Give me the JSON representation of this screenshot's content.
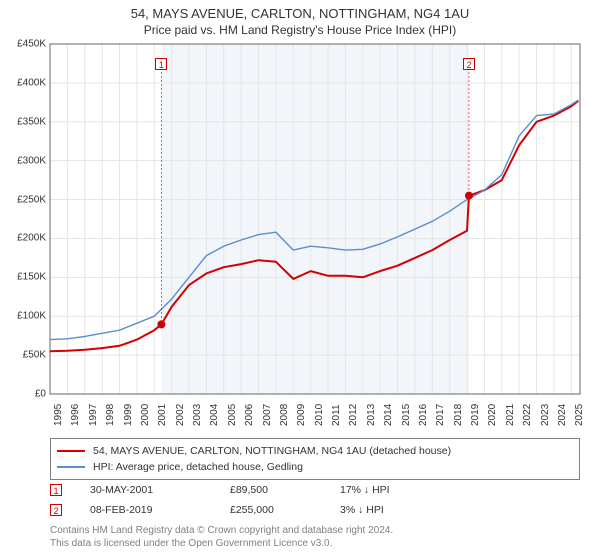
{
  "title": "54, MAYS AVENUE, CARLTON, NOTTINGHAM, NG4 1AU",
  "subtitle": "Price paid vs. HM Land Registry's House Price Index (HPI)",
  "chart": {
    "type": "line",
    "background_color": "#ffffff",
    "shaded_band_color": "#f2f5f9",
    "shaded_band_start": 2001.41,
    "shaded_band_end": 2019.11,
    "grid_color": "#e5e5e5",
    "axis_color": "#666666",
    "label_color": "#333333",
    "label_fontsize": 10,
    "ylim": [
      0,
      450000
    ],
    "ytick_step": 50000,
    "ytick_labels": [
      "£0",
      "£50K",
      "£100K",
      "£150K",
      "£200K",
      "£250K",
      "£300K",
      "£350K",
      "£400K",
      "£450K"
    ],
    "xlim": [
      1995,
      2025.5
    ],
    "xtick_step": 1,
    "xtick_labels": [
      "1995",
      "1996",
      "1997",
      "1998",
      "1999",
      "2000",
      "2001",
      "2002",
      "2003",
      "2004",
      "2005",
      "2006",
      "2007",
      "2008",
      "2009",
      "2010",
      "2011",
      "2012",
      "2013",
      "2014",
      "2015",
      "2016",
      "2017",
      "2018",
      "2019",
      "2020",
      "2021",
      "2022",
      "2023",
      "2024",
      "2025"
    ],
    "series": [
      {
        "name": "54, MAYS AVENUE, CARLTON, NOTTINGHAM, NG4 1AU (detached house)",
        "color": "#d40000",
        "line_width": 2,
        "x": [
          1995,
          1996,
          1997,
          1998,
          1999,
          2000,
          2001,
          2001.41,
          2002,
          2003,
          2004,
          2005,
          2006,
          2007,
          2008,
          2009,
          2010,
          2011,
          2012,
          2013,
          2014,
          2015,
          2016,
          2017,
          2018,
          2019,
          2019.11,
          2020,
          2021,
          2022,
          2023,
          2024,
          2025,
          2025.4
        ],
        "y": [
          55000,
          55500,
          57000,
          59000,
          62000,
          70000,
          82000,
          89500,
          112000,
          140000,
          155000,
          163000,
          167000,
          172000,
          170000,
          148000,
          158000,
          152000,
          152000,
          150000,
          158000,
          165000,
          175000,
          185000,
          198000,
          210000,
          255000,
          262000,
          275000,
          320000,
          350000,
          358000,
          370000,
          377000
        ]
      },
      {
        "name": "HPI: Average price, detached house, Gedling",
        "color": "#5b8ecb",
        "line_width": 1.4,
        "x": [
          1995,
          1996,
          1997,
          1998,
          1999,
          2000,
          2001,
          2002,
          2003,
          2004,
          2005,
          2006,
          2007,
          2008,
          2009,
          2010,
          2011,
          2012,
          2013,
          2014,
          2015,
          2016,
          2017,
          2018,
          2019,
          2020,
          2021,
          2022,
          2023,
          2024,
          2025,
          2025.4
        ],
        "y": [
          70000,
          71000,
          74000,
          78000,
          82000,
          91000,
          100000,
          122000,
          150000,
          178000,
          190000,
          198000,
          205000,
          208000,
          185000,
          190000,
          188000,
          185000,
          186000,
          193000,
          202000,
          212000,
          222000,
          235000,
          250000,
          262000,
          282000,
          332000,
          358000,
          360000,
          372000,
          378000
        ]
      }
    ],
    "sale_points": [
      {
        "label": "1",
        "x": 2001.41,
        "y": 89500,
        "box_color": "#d40000"
      },
      {
        "label": "2",
        "x": 2019.11,
        "y": 255000,
        "box_color": "#d40000"
      }
    ]
  },
  "legend": {
    "border_color": "#808080",
    "items": [
      {
        "color": "#d40000",
        "thickness": 2,
        "label": "54, MAYS AVENUE, CARLTON, NOTTINGHAM, NG4 1AU (detached house)"
      },
      {
        "color": "#5b8ecb",
        "thickness": 1.4,
        "label": "HPI: Average price, detached house, Gedling"
      }
    ]
  },
  "sale_rows": [
    {
      "marker": "1",
      "marker_color": "#d40000",
      "date": "30-MAY-2001",
      "price": "£89,500",
      "diff": "17% ↓ HPI"
    },
    {
      "marker": "2",
      "marker_color": "#d40000",
      "date": "08-FEB-2019",
      "price": "£255,000",
      "diff": "3% ↓ HPI"
    }
  ],
  "footer_line1": "Contains HM Land Registry data © Crown copyright and database right 2024.",
  "footer_line2": "This data is licensed under the Open Government Licence v3.0."
}
